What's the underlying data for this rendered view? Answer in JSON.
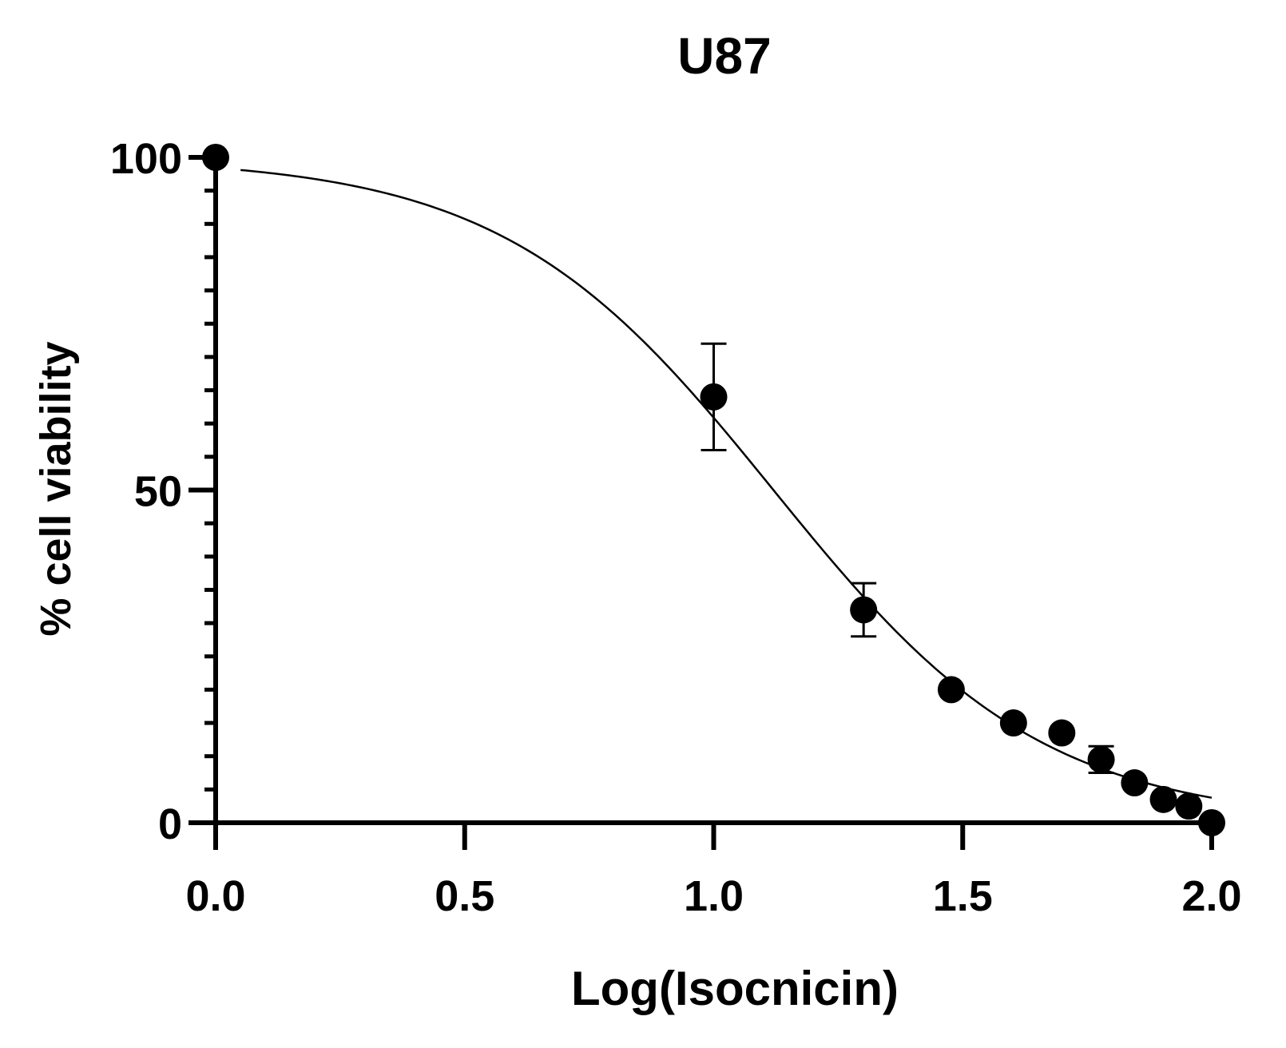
{
  "chart_data": {
    "type": "scatter",
    "title": "U87",
    "xlabel": "Log(Isocnicin)",
    "ylabel": "% cell viability",
    "xlim": [
      0,
      2
    ],
    "ylim": [
      0,
      100
    ],
    "x_ticks": [
      {
        "value": 0,
        "label": "0.0"
      },
      {
        "value": 0.5,
        "label": "0.5"
      },
      {
        "value": 1.0,
        "label": "1.0"
      },
      {
        "value": 1.5,
        "label": "1.5"
      },
      {
        "value": 2.0,
        "label": "2.0"
      }
    ],
    "y_ticks": [
      {
        "value": 0,
        "label": "0"
      },
      {
        "value": 50,
        "label": "50"
      },
      {
        "value": 100,
        "label": "100"
      }
    ],
    "y_minor_step": 5,
    "grid": false,
    "points": [
      {
        "x": 0.0,
        "y": 100,
        "err": 0
      },
      {
        "x": 1.0,
        "y": 64,
        "err": 8
      },
      {
        "x": 1.301,
        "y": 32,
        "err": 4
      },
      {
        "x": 1.477,
        "y": 20,
        "err": 0
      },
      {
        "x": 1.602,
        "y": 15,
        "err": 0
      },
      {
        "x": 1.699,
        "y": 13.5,
        "err": 0
      },
      {
        "x": 1.778,
        "y": 9.5,
        "err": 2
      },
      {
        "x": 1.845,
        "y": 6,
        "err": 0
      },
      {
        "x": 1.903,
        "y": 3.5,
        "err": 0
      },
      {
        "x": 1.954,
        "y": 2.5,
        "err": 0
      },
      {
        "x": 2.0,
        "y": 0,
        "err": 0
      }
    ],
    "fit": {
      "type": "sigmoid",
      "top": 100,
      "bottom": 0,
      "logIC50": 1.12,
      "hill": -1.6
    }
  }
}
